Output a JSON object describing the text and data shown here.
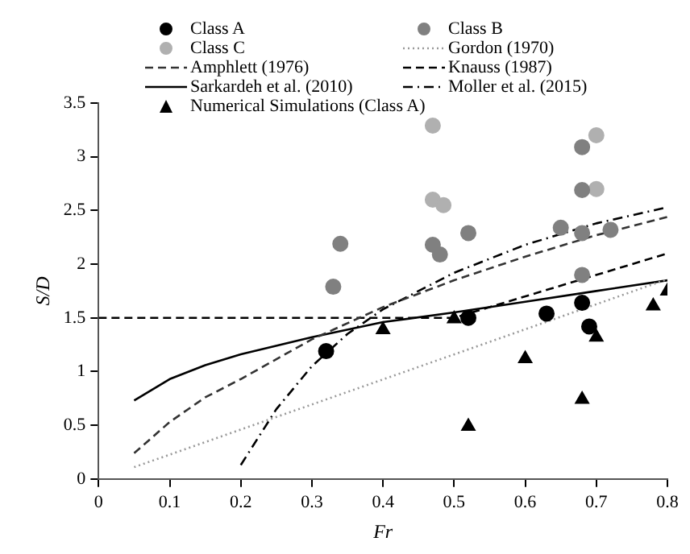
{
  "chart_data": {
    "type": "scatter",
    "xlabel": "Fr",
    "ylabel": "S/D",
    "xlim": [
      0,
      0.8
    ],
    "xticks": [
      0,
      0.1,
      0.2,
      0.3,
      0.4,
      0.5,
      0.6,
      0.7,
      0.8
    ],
    "ylim": [
      0,
      3.5
    ],
    "yticks": [
      0,
      0.5,
      1,
      1.5,
      2,
      2.5,
      3,
      3.5
    ],
    "grid": false,
    "legend": "top",
    "series": [
      {
        "name": "Class A",
        "type": "scatter",
        "marker": "circle",
        "color": "#000000",
        "x": [
          0.32,
          0.52,
          0.63,
          0.68,
          0.69
        ],
        "values": [
          1.19,
          1.5,
          1.54,
          1.64,
          1.42
        ]
      },
      {
        "name": "Class B",
        "type": "scatter",
        "marker": "circle",
        "color": "#808080",
        "x": [
          0.33,
          0.34,
          0.47,
          0.48,
          0.52,
          0.65,
          0.68,
          0.68,
          0.68,
          0.68,
          0.72
        ],
        "values": [
          1.79,
          2.19,
          2.18,
          2.09,
          2.29,
          2.34,
          2.29,
          2.69,
          1.9,
          3.09,
          2.32
        ]
      },
      {
        "name": "Class C",
        "type": "scatter",
        "marker": "circle",
        "color": "#b0b0b0",
        "x": [
          0.47,
          0.47,
          0.485,
          0.7,
          0.7
        ],
        "values": [
          3.29,
          2.6,
          2.55,
          2.7,
          3.2
        ]
      },
      {
        "name": "Gordon (1970)",
        "type": "line",
        "marker": "none",
        "line_style": "dotted",
        "color": "#999999",
        "x": [
          0.05,
          0.8
        ],
        "values": [
          0.11,
          1.86
        ]
      },
      {
        "name": "Amphlett (1976)",
        "type": "line",
        "marker": "none",
        "line_style": "dashed",
        "color": "#333333",
        "x": [
          0.05,
          0.1,
          0.15,
          0.2,
          0.3,
          0.4,
          0.5,
          0.6,
          0.7,
          0.8
        ],
        "values": [
          0.24,
          0.53,
          0.76,
          0.93,
          1.3,
          1.6,
          1.85,
          2.07,
          2.27,
          2.44
        ]
      },
      {
        "name": "Knauss (1987)",
        "type": "line",
        "marker": "none",
        "line_style": "dashed",
        "color": "#000000",
        "x": [
          0,
          0.5,
          0.8
        ],
        "values": [
          1.5,
          1.5,
          2.1
        ]
      },
      {
        "name": "Sarkardeh et al. (2010)",
        "type": "line",
        "marker": "none",
        "line_style": "solid",
        "color": "#000000",
        "x": [
          0.05,
          0.1,
          0.15,
          0.2,
          0.3,
          0.4,
          0.5,
          0.6,
          0.7,
          0.8
        ],
        "values": [
          0.73,
          0.93,
          1.06,
          1.16,
          1.32,
          1.46,
          1.55,
          1.65,
          1.75,
          1.85
        ]
      },
      {
        "name": "Moller et al. (2015)",
        "type": "line",
        "marker": "none",
        "line_style": "dashdot",
        "color": "#000000",
        "x": [
          0.2,
          0.25,
          0.3,
          0.35,
          0.4,
          0.5,
          0.6,
          0.7,
          0.8
        ],
        "values": [
          0.13,
          0.65,
          1.05,
          1.35,
          1.58,
          1.92,
          2.18,
          2.38,
          2.53
        ]
      },
      {
        "name": "Numerical Simulations (Class A)",
        "type": "scatter",
        "marker": "triangle",
        "color": "#000000",
        "x": [
          0.4,
          0.5,
          0.52,
          0.6,
          0.68,
          0.7,
          0.78,
          0.8
        ],
        "values": [
          1.39,
          1.49,
          0.49,
          1.12,
          0.74,
          1.32,
          1.61,
          1.75
        ]
      }
    ]
  }
}
